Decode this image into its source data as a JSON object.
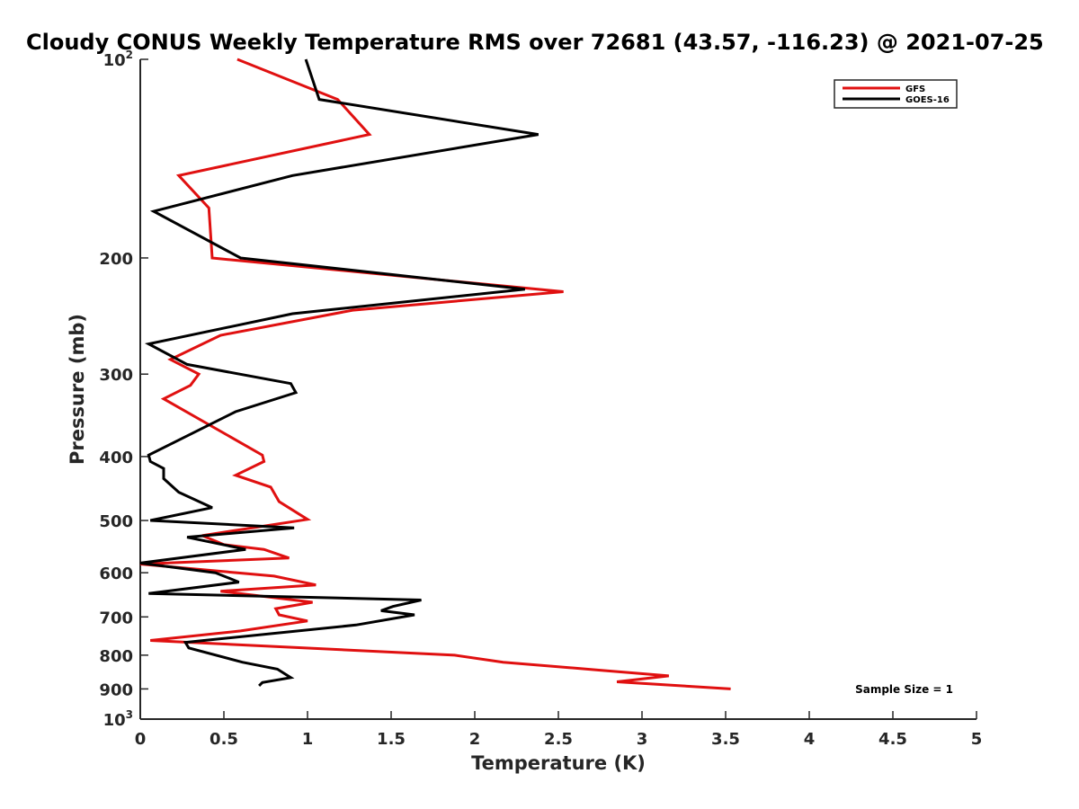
{
  "chart_data": {
    "type": "line",
    "title": "Cloudy CONUS Weekly Temperature RMS over 72681 (43.57, -116.23) @ 2021-07-25",
    "xlabel": "Temperature (K)",
    "ylabel": "Pressure (mb)",
    "xlim": [
      0,
      5
    ],
    "ylim": [
      100,
      1000
    ],
    "y_scale": "log",
    "y_reversed": true,
    "x_ticks": [
      "0",
      "0.5",
      "1",
      "1.5",
      "2",
      "2.5",
      "3",
      "3.5",
      "4",
      "4.5",
      "5"
    ],
    "y_ticks": [
      {
        "value": 100,
        "base": "10",
        "exp": "2"
      },
      {
        "value": 200,
        "label": "200"
      },
      {
        "value": 300,
        "label": "300"
      },
      {
        "value": 400,
        "label": "400"
      },
      {
        "value": 500,
        "label": "500"
      },
      {
        "value": 600,
        "label": "600"
      },
      {
        "value": 700,
        "label": "700"
      },
      {
        "value": 800,
        "label": "800"
      },
      {
        "value": 900,
        "label": "900"
      },
      {
        "value": 1000,
        "base": "10",
        "exp": "3"
      }
    ],
    "grid": false,
    "legend_position": "top-right",
    "annotation": "Sample Size = 1",
    "series": [
      {
        "name": "GFS",
        "color": "#e01010",
        "points": [
          [
            0.58,
            100
          ],
          [
            1.18,
            115
          ],
          [
            1.37,
            130
          ],
          [
            0.23,
            150
          ],
          [
            0.41,
            168
          ],
          [
            0.43,
            200
          ],
          [
            2.53,
            225
          ],
          [
            1.27,
            240
          ],
          [
            0.48,
            262
          ],
          [
            0.18,
            285
          ],
          [
            0.35,
            300
          ],
          [
            0.3,
            312
          ],
          [
            0.14,
            327
          ],
          [
            0.73,
            398
          ],
          [
            0.74,
            407
          ],
          [
            0.57,
            427
          ],
          [
            0.78,
            445
          ],
          [
            0.83,
            468
          ],
          [
            1.0,
            498
          ],
          [
            0.37,
            527
          ],
          [
            0.5,
            544
          ],
          [
            0.74,
            553
          ],
          [
            0.89,
            570
          ],
          [
            0.0,
            582
          ],
          [
            0.8,
            607
          ],
          [
            1.05,
            626
          ],
          [
            0.48,
            640
          ],
          [
            1.03,
            665
          ],
          [
            0.81,
            680
          ],
          [
            0.83,
            695
          ],
          [
            1.0,
            710
          ],
          [
            0.6,
            735
          ],
          [
            0.06,
            760
          ],
          [
            1.88,
            800
          ],
          [
            2.17,
            820
          ],
          [
            2.75,
            843
          ],
          [
            3.16,
            860
          ],
          [
            2.85,
            878
          ],
          [
            3.53,
            900
          ]
        ]
      },
      {
        "name": "GOES-16",
        "color": "#000000",
        "points": [
          [
            0.99,
            100
          ],
          [
            1.07,
            115
          ],
          [
            2.38,
            130
          ],
          [
            0.91,
            150
          ],
          [
            0.08,
            170
          ],
          [
            0.6,
            200
          ],
          [
            2.3,
            223
          ],
          [
            0.91,
            243
          ],
          [
            0.05,
            270
          ],
          [
            0.28,
            290
          ],
          [
            0.9,
            310
          ],
          [
            0.93,
            320
          ],
          [
            0.57,
            342
          ],
          [
            0.05,
            398
          ],
          [
            0.06,
            407
          ],
          [
            0.14,
            417
          ],
          [
            0.14,
            432
          ],
          [
            0.23,
            453
          ],
          [
            0.43,
            478
          ],
          [
            0.06,
            500
          ],
          [
            0.92,
            513
          ],
          [
            0.28,
            530
          ],
          [
            0.63,
            553
          ],
          [
            0.0,
            580
          ],
          [
            0.45,
            600
          ],
          [
            0.59,
            620
          ],
          [
            0.05,
            645
          ],
          [
            1.68,
            660
          ],
          [
            1.51,
            675
          ],
          [
            1.44,
            685
          ],
          [
            1.64,
            695
          ],
          [
            1.29,
            720
          ],
          [
            0.27,
            765
          ],
          [
            0.29,
            780
          ],
          [
            0.61,
            820
          ],
          [
            0.82,
            840
          ],
          [
            0.9,
            865
          ],
          [
            0.73,
            880
          ],
          [
            0.71,
            890
          ]
        ]
      }
    ]
  }
}
